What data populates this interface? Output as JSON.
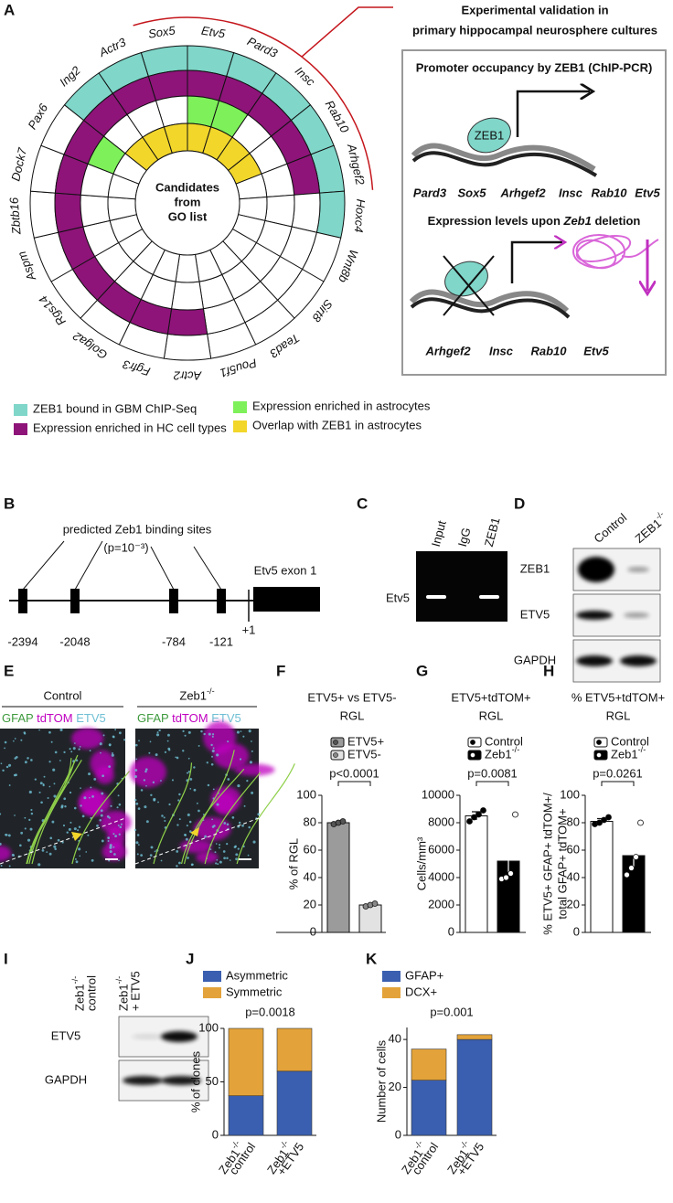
{
  "figure": {
    "A": {
      "letter": "A",
      "center_lines": [
        "Candidates",
        "from",
        "GO list"
      ],
      "genes": [
        {
          "name": "Sox5",
          "color": "#c4161c",
          "rings": [
            true,
            true,
            false,
            true
          ]
        },
        {
          "name": "Etv5",
          "color": "#c4161c",
          "rings": [
            true,
            true,
            true,
            true
          ]
        },
        {
          "name": "Pard3",
          "color": "#c4161c",
          "rings": [
            true,
            true,
            true,
            true
          ]
        },
        {
          "name": "Insc",
          "color": "#c4161c",
          "rings": [
            true,
            true,
            false,
            true
          ]
        },
        {
          "name": "Rab10",
          "color": "#c4161c",
          "rings": [
            true,
            true,
            false,
            true
          ]
        },
        {
          "name": "Arhgef2",
          "color": "#c4161c",
          "rings": [
            true,
            true,
            false,
            false
          ]
        },
        {
          "name": "Hoxc4",
          "color": "#808080",
          "rings": [
            true,
            false,
            false,
            false
          ]
        },
        {
          "name": "Wnt8b",
          "color": "#808080",
          "rings": [
            false,
            false,
            false,
            false
          ]
        },
        {
          "name": "Sirt8",
          "color": "#808080",
          "rings": [
            false,
            false,
            false,
            false
          ]
        },
        {
          "name": "Tead3",
          "color": "#808080",
          "rings": [
            false,
            false,
            false,
            false
          ]
        },
        {
          "name": "Pou5f1",
          "color": "#808080",
          "rings": [
            false,
            false,
            false,
            false
          ]
        },
        {
          "name": "Actr2",
          "color": "#808080",
          "rings": [
            false,
            true,
            false,
            false
          ]
        },
        {
          "name": "Fgfr3",
          "color": "#808080",
          "rings": [
            false,
            true,
            false,
            false
          ]
        },
        {
          "name": "Golga2",
          "color": "#808080",
          "rings": [
            false,
            true,
            false,
            false
          ]
        },
        {
          "name": "Rgs14",
          "color": "#808080",
          "rings": [
            false,
            true,
            false,
            false
          ]
        },
        {
          "name": "Aspm",
          "color": "#808080",
          "rings": [
            false,
            true,
            false,
            false
          ]
        },
        {
          "name": "Zbtb16",
          "color": "#808080",
          "rings": [
            false,
            true,
            false,
            false
          ]
        },
        {
          "name": "Dock7",
          "color": "#808080",
          "rings": [
            false,
            true,
            false,
            false
          ]
        },
        {
          "name": "Pax6",
          "color": "#808080",
          "rings": [
            false,
            true,
            true,
            false
          ]
        },
        {
          "name": "Ing2",
          "color": "#808080",
          "rings": [
            true,
            true,
            false,
            true
          ]
        },
        {
          "name": "Actr3",
          "color": "#808080",
          "rings": [
            true,
            true,
            false,
            true
          ]
        }
      ],
      "legend": [
        {
          "label": "ZEB1 bound in GBM ChIP-Seq",
          "color": "#7fd6c9"
        },
        {
          "label": "Expression enriched in HC cell types",
          "color": "#8e1479"
        },
        {
          "label": "Expression enriched in astrocytes",
          "color": "#7ef05a"
        },
        {
          "label": "Overlap with ZEB1 in astrocytes",
          "color": "#f2d62a"
        }
      ],
      "validation": {
        "title_lines": [
          "Experimental validation in",
          "primary hippocampal neurosphere cultures"
        ],
        "promoter_title": "Promoter occupancy by ZEB1 (ChIP-PCR)",
        "protein": "ZEB1",
        "promoter_genes": [
          {
            "name": "Pard3",
            "color": "#111111"
          },
          {
            "name": "Sox5",
            "color": "#111111"
          },
          {
            "name": "Arhgef2",
            "color": "#6fcfc0"
          },
          {
            "name": "Insc",
            "color": "#6fcfc0"
          },
          {
            "name": "Rab10",
            "color": "#6fcfc0"
          },
          {
            "name": "Etv5",
            "color": "#6fcfc0"
          }
        ],
        "expression_title": [
          "Expression levels upon",
          "Zeb1",
          "deletion"
        ],
        "expression_genes": [
          {
            "name": "Arhgef2",
            "color": "#111111"
          },
          {
            "name": "Insc",
            "color": "#111111"
          },
          {
            "name": "Rab10",
            "color": "#111111"
          },
          {
            "name": "Etv5",
            "color": "#c030c0"
          }
        ]
      }
    },
    "B": {
      "letter": "B",
      "title": "predicted Zeb1 binding sites",
      "pvalue": "(p=10⁻³)",
      "sites": [
        "-2394",
        "-2048",
        "-784",
        "-121"
      ],
      "tss": "+1",
      "exon": "Etv5 exon 1"
    },
    "C": {
      "letter": "C",
      "lanes": [
        "Input",
        "IgG",
        "ZEB1"
      ],
      "row": "Etv5"
    },
    "D": {
      "letter": "D",
      "lanes": [
        "Control",
        "ZEB1-/-"
      ],
      "rows": [
        "ZEB1",
        "ETV5",
        "GAPDH"
      ]
    },
    "E": {
      "letter": "E",
      "conditions": [
        "Control",
        "Zeb1-/-"
      ],
      "channels": [
        {
          "name": "GFAP",
          "color": "#3d9a3d"
        },
        {
          "name": "tdTOM",
          "color": "#c000c0"
        },
        {
          "name": "ETV5",
          "color": "#6fbfd4"
        }
      ]
    },
    "I": {
      "letter": "I",
      "lanes": [
        [
          "Zeb1-/-",
          "control"
        ],
        [
          "Zeb1-/-",
          "+ ETV5"
        ]
      ],
      "rows": [
        "ETV5",
        "GAPDH"
      ]
    }
  },
  "chart_data": [
    {
      "type": "bar",
      "letter": "F",
      "title": [
        "ETV5+ vs ETV5-",
        "RGL"
      ],
      "ylabel": [
        "% of RGL"
      ],
      "annotation": "p<0.0001",
      "ylim": [
        0,
        100
      ],
      "yticks": [
        0,
        20,
        40,
        60,
        80,
        100
      ],
      "series": [
        {
          "name": "ETV5+",
          "color": "#9b9b9b",
          "point_color": "#555555",
          "values": [
            80
          ],
          "points": [
            [
              79,
              80,
              81
            ]
          ]
        },
        {
          "name": "ETV5-",
          "color": "#e2e2e2",
          "point_color": "#888888",
          "values": [
            20
          ],
          "points": [
            [
              19,
              20,
              21
            ]
          ]
        }
      ]
    },
    {
      "type": "bar",
      "letter": "G",
      "title": [
        "ETV5+tdTOM+",
        "RGL"
      ],
      "ylabel": [
        "Cells/mm³"
      ],
      "annotation": "p=0.0081",
      "ylim": [
        0,
        10000
      ],
      "yticks": [
        0,
        2000,
        4000,
        6000,
        8000,
        10000
      ],
      "series": [
        {
          "name": "Control",
          "color": "#ffffff",
          "point_color": "#000000",
          "values": [
            8500
          ],
          "errors": [
            300
          ],
          "points": [
            [
              8100,
              8400,
              8600,
              8900
            ]
          ]
        },
        {
          "name": "Zeb1-/-",
          "color": "#000000",
          "point_color": "#ffffff",
          "values": [
            5200
          ],
          "errors": [
            950
          ],
          "points": [
            [
              3900,
              4000,
              4300,
              8600
            ]
          ]
        }
      ]
    },
    {
      "type": "bar",
      "letter": "H",
      "title": [
        "% ETV5+tdTOM+",
        "RGL"
      ],
      "ylabel": [
        "% ETV5+ GFAP+ tdTOM+/",
        "total GFAP+ tdTOM+"
      ],
      "annotation": "p=0.0261",
      "ylim": [
        0,
        100
      ],
      "yticks": [
        0,
        20,
        40,
        60,
        80,
        100
      ],
      "series": [
        {
          "name": "Control",
          "color": "#ffffff",
          "point_color": "#000000",
          "values": [
            81
          ],
          "errors": [
            2
          ],
          "points": [
            [
              79,
              80,
              82,
              84
            ]
          ]
        },
        {
          "name": "Zeb1-/-",
          "color": "#000000",
          "point_color": "#ffffff",
          "values": [
            56
          ],
          "errors": [
            8
          ],
          "points": [
            [
              42,
              47,
              55,
              80
            ]
          ]
        }
      ]
    },
    {
      "type": "stacked_bar",
      "letter": "J",
      "categories": [
        [
          "Zeb1-/-",
          "control"
        ],
        [
          "Zeb1-/-",
          "+ETV5"
        ]
      ],
      "ylabel": [
        "% of clones"
      ],
      "annotation": "p=0.0018",
      "ylim": [
        0,
        100
      ],
      "yticks": [
        0,
        50,
        100
      ],
      "series": [
        {
          "name": "Asymmetric",
          "color": "#3a5fb0",
          "values": [
            37,
            60
          ]
        },
        {
          "name": "Symmetric",
          "color": "#e3a33a",
          "values": [
            63,
            40
          ]
        }
      ]
    },
    {
      "type": "stacked_bar",
      "letter": "K",
      "categories": [
        [
          "Zeb1-/-",
          "control"
        ],
        [
          "Zeb1-/-",
          "+ETV5"
        ]
      ],
      "ylabel": [
        "Number of cells"
      ],
      "annotation": "p=0.001",
      "ylim": [
        0,
        45
      ],
      "yticks": [
        0,
        20,
        40
      ],
      "series": [
        {
          "name": "GFAP+",
          "color": "#3a5fb0",
          "values": [
            23,
            40
          ]
        },
        {
          "name": "DCX+",
          "color": "#e3a33a",
          "values": [
            13,
            2
          ]
        }
      ]
    }
  ]
}
